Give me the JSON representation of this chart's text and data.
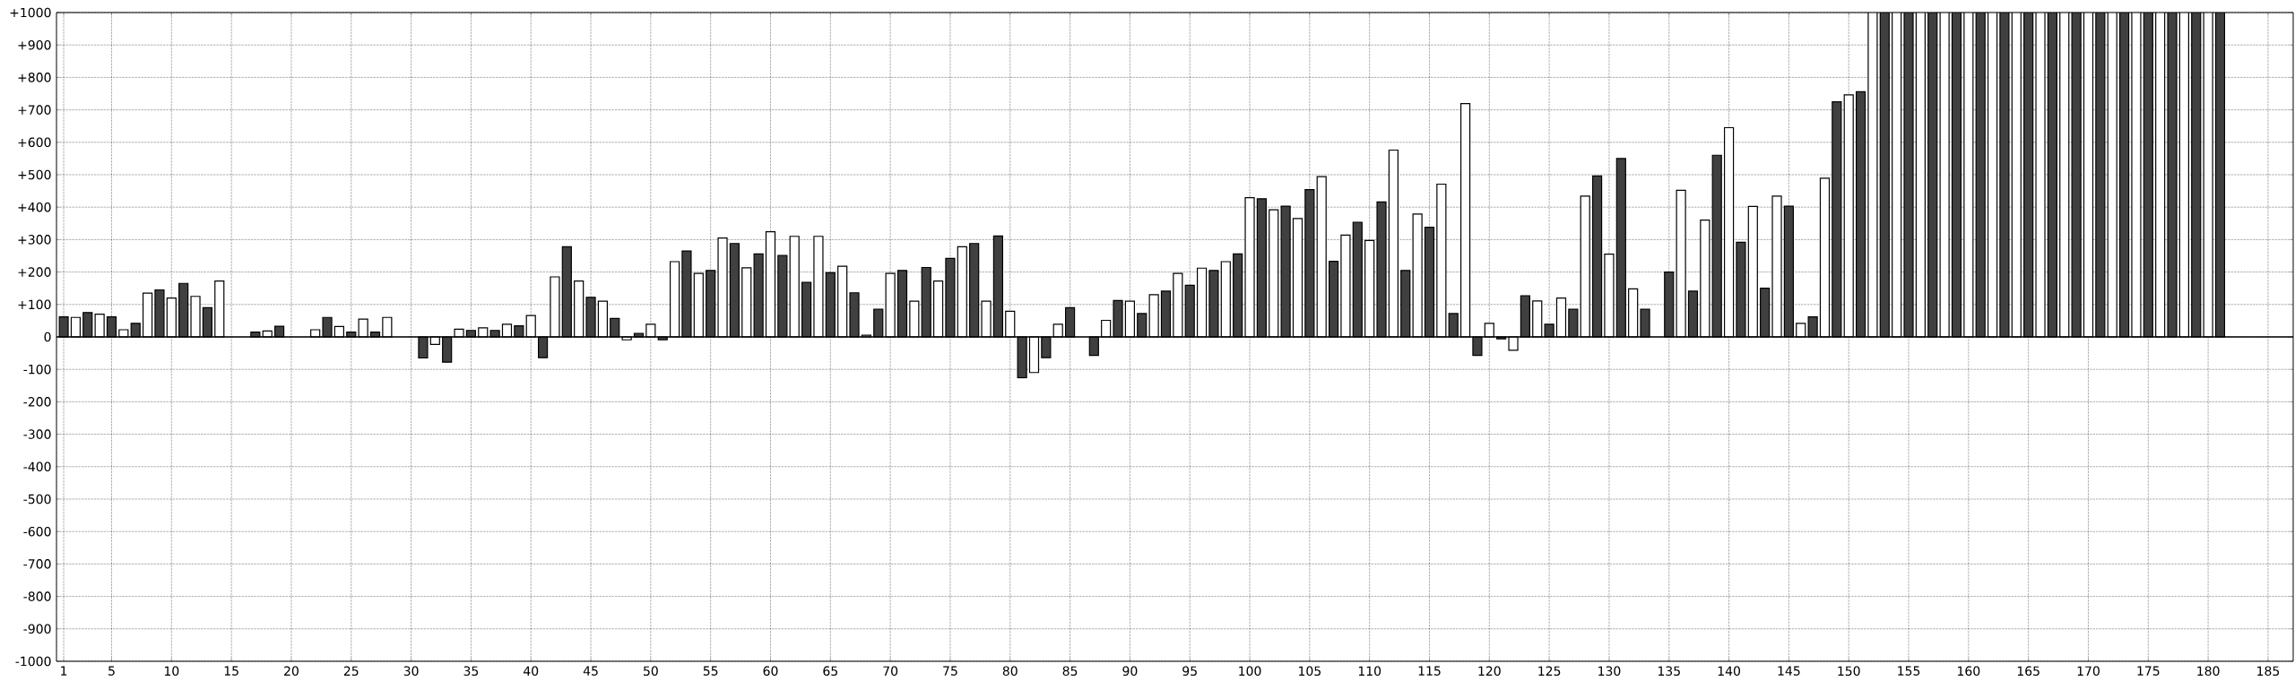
{
  "chart_data": {
    "type": "bar",
    "series": [
      {
        "color": "#404040",
        "x": [
          1,
          3,
          5,
          7,
          9,
          11,
          13,
          15,
          17,
          19,
          21,
          23,
          25,
          27,
          29,
          31,
          33,
          35,
          37,
          39,
          41,
          43,
          45,
          47,
          49,
          51,
          53,
          55,
          57,
          59,
          61,
          63,
          65,
          67,
          69,
          71,
          73,
          75,
          77,
          79,
          81,
          83,
          85,
          87,
          89,
          91,
          93,
          95,
          97,
          99,
          101,
          103,
          105,
          107,
          109,
          111,
          113,
          115,
          117,
          119,
          121,
          123,
          125,
          127,
          129,
          131,
          133,
          135,
          137,
          139,
          141,
          143,
          145,
          147,
          149,
          151,
          153,
          155,
          157,
          159,
          161,
          163,
          165,
          167,
          169,
          171,
          173,
          175,
          177,
          179,
          181
        ],
        "values": [
          62,
          75,
          62,
          42,
          145,
          165,
          90,
          null,
          15,
          33,
          null,
          60,
          15,
          15,
          null,
          -65,
          -78,
          20,
          20,
          34,
          -64,
          278,
          122,
          57,
          11,
          -9,
          265,
          205,
          288,
          256,
          251,
          168,
          198,
          136,
          85,
          205,
          214,
          242,
          288,
          311,
          -126,
          -64,
          90,
          -57,
          112,
          72,
          141,
          159,
          205,
          256,
          426,
          403,
          454,
          233,
          353,
          416,
          205,
          338,
          72,
          -57,
          -6,
          127,
          39,
          85,
          496,
          550,
          85,
          200,
          141,
          560,
          292,
          150,
          403,
          62,
          725,
          756,
          1000,
          1000,
          1000,
          1000,
          1000,
          1000,
          1000,
          1000,
          1000,
          1000,
          1000,
          1000,
          1000,
          1000,
          1000
        ]
      },
      {
        "color": "#ffffff",
        "x": [
          2,
          4,
          6,
          8,
          10,
          12,
          14,
          16,
          18,
          20,
          22,
          24,
          26,
          28,
          30,
          32,
          34,
          36,
          38,
          40,
          42,
          44,
          46,
          48,
          50,
          52,
          54,
          56,
          58,
          60,
          62,
          64,
          66,
          68,
          70,
          72,
          74,
          76,
          78,
          80,
          82,
          84,
          86,
          88,
          90,
          92,
          94,
          96,
          98,
          100,
          102,
          104,
          106,
          108,
          110,
          112,
          114,
          116,
          118,
          120,
          122,
          124,
          126,
          128,
          130,
          132,
          134,
          136,
          138,
          140,
          142,
          144,
          146,
          148,
          150,
          152,
          154,
          156,
          158,
          160,
          162,
          164,
          166,
          168,
          170,
          172,
          174,
          176,
          178,
          180
        ],
        "values": [
          60,
          70,
          22,
          135,
          120,
          125,
          172,
          null,
          18,
          null,
          22,
          32,
          55,
          60,
          null,
          -23,
          24,
          28,
          39,
          66,
          185,
          172,
          110,
          -9,
          39,
          232,
          196,
          305,
          213,
          324,
          310,
          310,
          218,
          5,
          196,
          110,
          172,
          278,
          110,
          79,
          -110,
          39,
          null,
          51,
          110,
          130,
          196,
          212,
          232,
          429,
          392,
          365,
          494,
          314,
          297,
          576,
          379,
          471,
          719,
          42,
          -41,
          111,
          120,
          434,
          255,
          148,
          null,
          452,
          360,
          645,
          402,
          434,
          42,
          489,
          746,
          1000,
          1000,
          1000,
          1000,
          1000,
          1000,
          1000,
          1000,
          1000,
          1000,
          1000,
          1000,
          1000,
          1000,
          1000
        ]
      }
    ],
    "xlim": [
      0.4,
      187.1
    ],
    "xticks": [
      1,
      5,
      10,
      15,
      20,
      25,
      30,
      35,
      40,
      45,
      50,
      55,
      60,
      65,
      70,
      75,
      80,
      85,
      90,
      95,
      100,
      105,
      110,
      115,
      120,
      125,
      130,
      135,
      140,
      145,
      150,
      155,
      160,
      165,
      170,
      175,
      180,
      185
    ],
    "ylim": [
      -1000,
      1000
    ],
    "yticks": [
      {
        "value": 1000,
        "label": "+1000"
      },
      {
        "value": 900,
        "label": "+900"
      },
      {
        "value": 800,
        "label": "+800"
      },
      {
        "value": 700,
        "label": "+700"
      },
      {
        "value": 600,
        "label": "+600"
      },
      {
        "value": 500,
        "label": "+500"
      },
      {
        "value": 400,
        "label": "+400"
      },
      {
        "value": 300,
        "label": "+300"
      },
      {
        "value": 200,
        "label": "+200"
      },
      {
        "value": 100,
        "label": "+100"
      },
      {
        "value": 0,
        "label": "0"
      },
      {
        "value": -100,
        "label": "-100"
      },
      {
        "value": -200,
        "label": "-200"
      },
      {
        "value": -300,
        "label": "-300"
      },
      {
        "value": -400,
        "label": "-400"
      },
      {
        "value": -500,
        "label": "-500"
      },
      {
        "value": -600,
        "label": "-600"
      },
      {
        "value": -700,
        "label": "-700"
      },
      {
        "value": -800,
        "label": "-800"
      },
      {
        "value": -900,
        "label": "-900"
      },
      {
        "value": -1000,
        "label": "-1000"
      }
    ],
    "ref_lines": [
      {
        "axis": "y",
        "value": 0,
        "color": "#000000",
        "line_style": "solid"
      }
    ],
    "grid": true
  }
}
